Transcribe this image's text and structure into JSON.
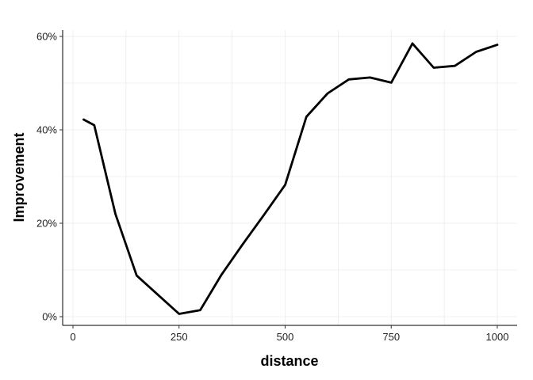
{
  "chart_data": {
    "type": "line",
    "title": "",
    "xlabel": "distance",
    "ylabel": "Improvement",
    "xlim": [
      0,
      1000
    ],
    "ylim": [
      0,
      0.6
    ],
    "x_ticks": [
      0,
      250,
      500,
      750,
      1000
    ],
    "x_tick_labels": [
      "0",
      "250",
      "500",
      "750",
      "1000"
    ],
    "y_ticks": [
      0,
      0.2,
      0.4,
      0.6
    ],
    "y_tick_labels": [
      "0%",
      "20%",
      "40%",
      "60%"
    ],
    "grid": true,
    "legend": "none",
    "line_color": "#000000",
    "series": [
      {
        "x": [
          25,
          50,
          100,
          150,
          250,
          300,
          350,
          400,
          450,
          500,
          550,
          600,
          650,
          700,
          750,
          800,
          850,
          900,
          950,
          1000
        ],
        "values": [
          0.422,
          0.41,
          0.22,
          0.088,
          0.006,
          0.014,
          0.09,
          0.155,
          0.218,
          0.282,
          0.428,
          0.478,
          0.508,
          0.512,
          0.501,
          0.585,
          0.533,
          0.537,
          0.567,
          0.582
        ]
      }
    ]
  }
}
